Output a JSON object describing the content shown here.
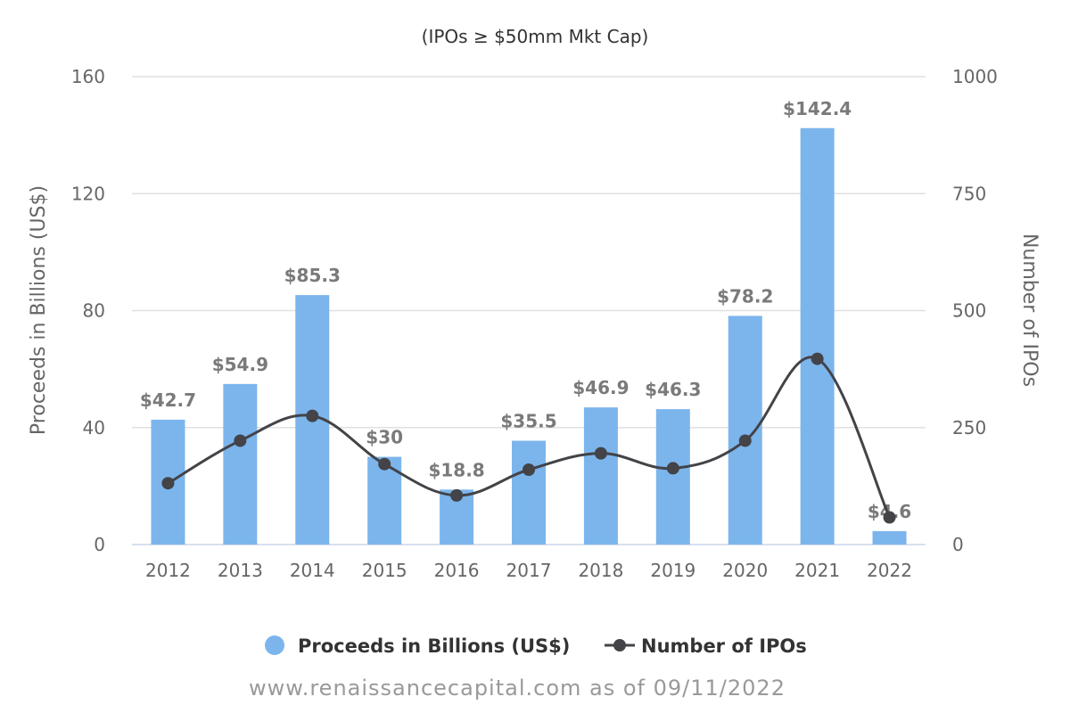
{
  "chart_data": {
    "type": "bar",
    "subtitle": "(IPOs ≥ $50mm Mkt Cap)",
    "categories": [
      "2012",
      "2013",
      "2014",
      "2015",
      "2016",
      "2017",
      "2018",
      "2019",
      "2020",
      "2021",
      "2022"
    ],
    "series": [
      {
        "name": "Proceeds in Billions (US$)",
        "type": "bar",
        "axis": "left",
        "color": "#7cb5ec",
        "values": [
          42.7,
          54.9,
          85.3,
          30,
          18.8,
          35.5,
          46.9,
          46.3,
          78.2,
          142.4,
          4.6
        ],
        "labels": [
          "$42.7",
          "$54.9",
          "$85.3",
          "$30",
          "$18.8",
          "$35.5",
          "$46.9",
          "$46.3",
          "$78.2",
          "$142.4",
          "$4.6"
        ]
      },
      {
        "name": "Number of IPOs",
        "type": "line",
        "axis": "right",
        "color": "#434348",
        "values": [
          131,
          222,
          275,
          172,
          105,
          160,
          195,
          163,
          222,
          397,
          58
        ]
      }
    ],
    "ylabel_left": "Proceeds in Billions (US$)",
    "ylabel_right": "Number of IPOs",
    "ylim_left": [
      0,
      160
    ],
    "ylim_right": [
      0,
      1000
    ],
    "yticks_left": [
      "0",
      "40",
      "80",
      "120",
      "160"
    ],
    "yticks_right": [
      "0",
      "250",
      "500",
      "750",
      "1000"
    ],
    "grid": true,
    "legend_position": "bottom-center"
  },
  "source": "www.renaissancecapital.com as of 09/11/2022"
}
